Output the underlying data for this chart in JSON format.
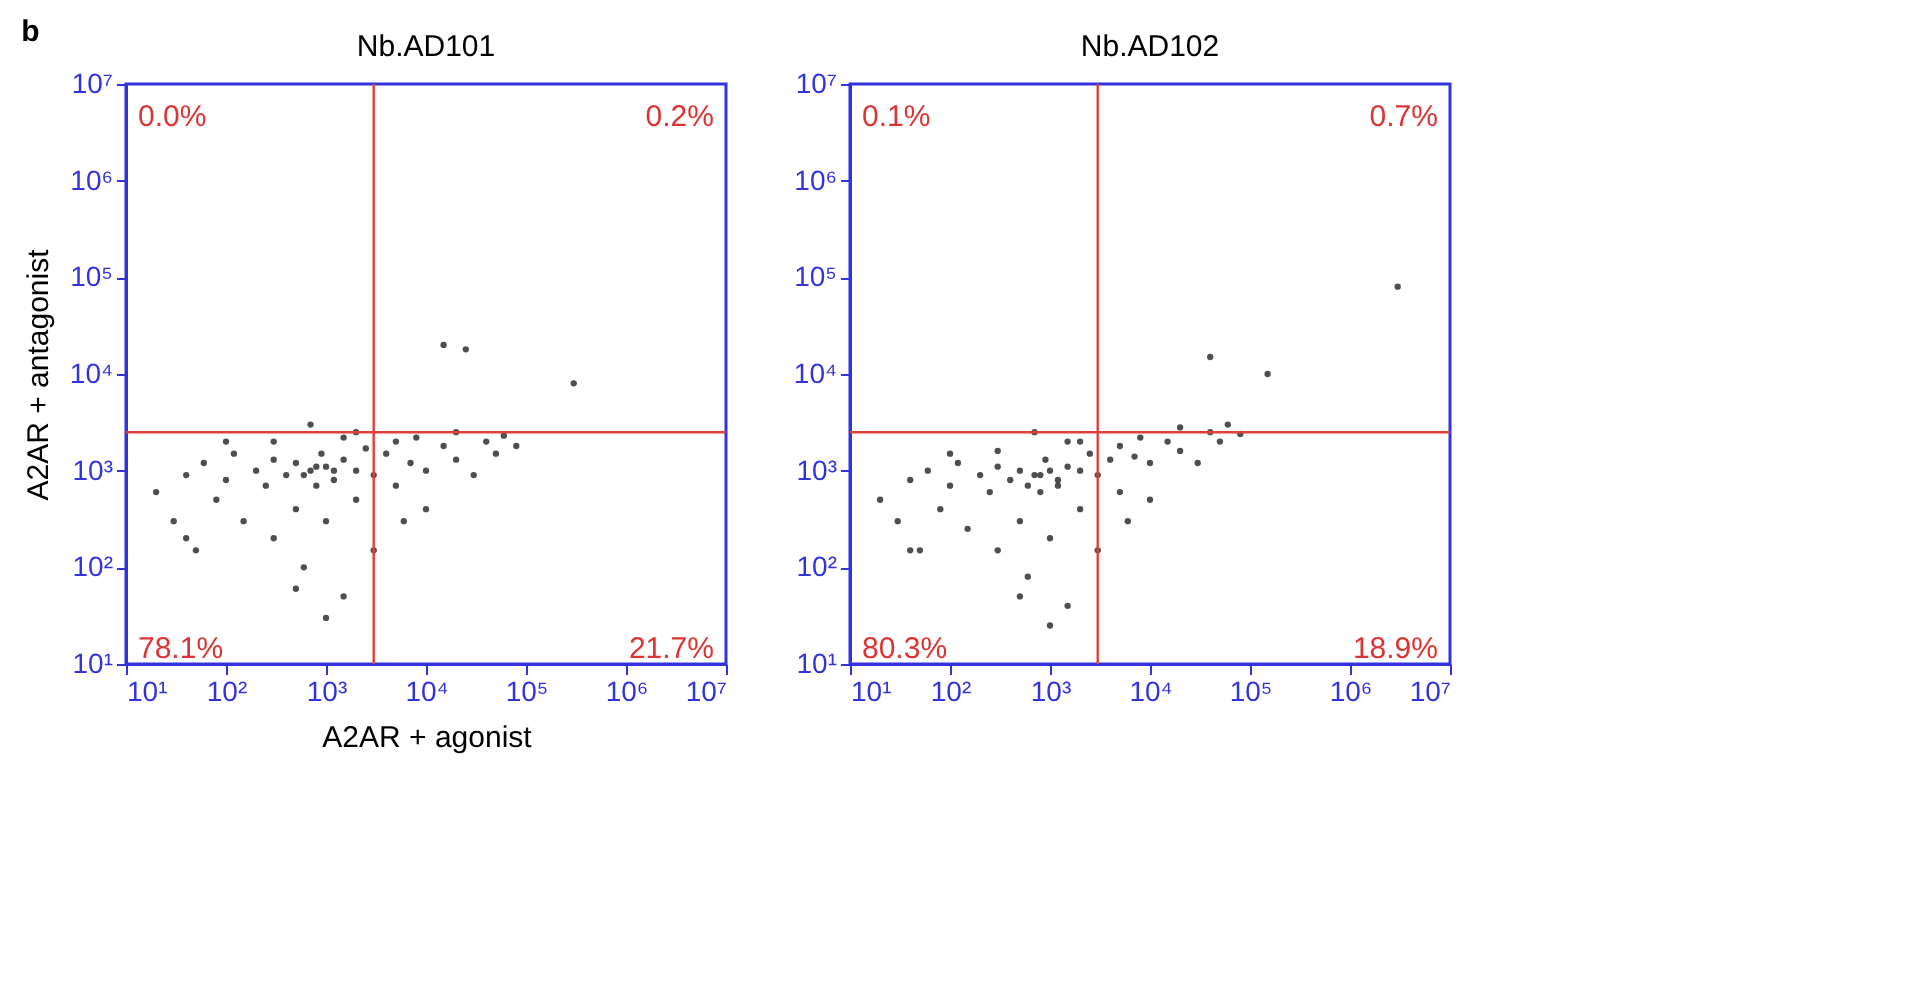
{
  "chart_data": [
    {
      "type": "scatter",
      "title": "Nb.AD101",
      "xlabel": "A2AR + agonist",
      "ylabel": "A2AR + antagonist",
      "log": "xy",
      "grid": false,
      "xlim": [
        10,
        10000000
      ],
      "ylim": [
        10,
        10000000
      ],
      "xticks": [
        {
          "value": 10,
          "label": "10¹"
        },
        {
          "value": 100,
          "label": "10²"
        },
        {
          "value": 1000,
          "label": "10³"
        },
        {
          "value": 10000,
          "label": "10⁴"
        },
        {
          "value": 100000,
          "label": "10⁵"
        },
        {
          "value": 1000000,
          "label": "10⁶"
        },
        {
          "value": 10000000,
          "label": "10⁷"
        }
      ],
      "yticks": [
        {
          "value": 10,
          "label": "10¹"
        },
        {
          "value": 100,
          "label": "10²"
        },
        {
          "value": 1000,
          "label": "10³"
        },
        {
          "value": 10000,
          "label": "10⁴"
        },
        {
          "value": 100000,
          "label": "10⁵"
        },
        {
          "value": 1000000,
          "label": "10⁶"
        },
        {
          "value": 10000000,
          "label": "10⁷"
        }
      ],
      "x": [
        20,
        30,
        40,
        50,
        60,
        80,
        100,
        120,
        150,
        200,
        250,
        300,
        300,
        400,
        500,
        500,
        600,
        700,
        800,
        900,
        1000,
        1000,
        1200,
        1500,
        1500,
        2000,
        2000,
        2500,
        3000,
        3000,
        4000,
        5000,
        5000,
        7000,
        8000,
        10000,
        10000,
        15000,
        20000,
        20000,
        30000,
        40000,
        50000,
        60000,
        80000,
        15000,
        25000,
        300000,
        1000,
        500,
        2000,
        300,
        100,
        40,
        700,
        1500,
        6000,
        600,
        800,
        1200
      ],
      "series": [
        {
          "color": "#222222",
          "values": [
            600,
            300,
            900,
            150,
            1200,
            500,
            800,
            1500,
            300,
            1000,
            700,
            1300,
            200,
            900,
            1200,
            400,
            100,
            1000,
            700,
            1500,
            1100,
            300,
            800,
            1300,
            50,
            1000,
            500,
            1700,
            900,
            150,
            1500,
            2000,
            700,
            1200,
            2200,
            1000,
            400,
            1800,
            1300,
            2500,
            900,
            2000,
            1500,
            2300,
            1800,
            20000,
            18000,
            8000,
            30,
            60,
            2500,
            2000,
            2000,
            200,
            3000,
            2200,
            300,
            900,
            1100,
            1000
          ]
        }
      ],
      "ref_lines": [
        {
          "axis": "x",
          "value": 3000,
          "color": "#e0403a"
        },
        {
          "axis": "y",
          "value": 2500,
          "color": "#e0403a"
        }
      ],
      "annotations": [
        "b",
        "0.0%",
        "0.2%",
        "78.1%",
        "21.7%"
      ]
    },
    {
      "type": "scatter",
      "title": "Nb.AD102",
      "log": "xy",
      "grid": false,
      "xlim": [
        10,
        10000000
      ],
      "ylim": [
        10,
        10000000
      ],
      "xticks": [
        {
          "value": 10,
          "label": "10¹"
        },
        {
          "value": 100,
          "label": "10²"
        },
        {
          "value": 1000,
          "label": "10³"
        },
        {
          "value": 10000,
          "label": "10⁴"
        },
        {
          "value": 100000,
          "label": "10⁵"
        },
        {
          "value": 1000000,
          "label": "10⁶"
        },
        {
          "value": 10000000,
          "label": "10⁷"
        }
      ],
      "yticks": [
        {
          "value": 10,
          "label": "10¹"
        },
        {
          "value": 100,
          "label": "10²"
        },
        {
          "value": 1000,
          "label": "10³"
        },
        {
          "value": 10000,
          "label": "10⁴"
        },
        {
          "value": 100000,
          "label": "10⁵"
        },
        {
          "value": 1000000,
          "label": "10⁶"
        },
        {
          "value": 10000000,
          "label": "10⁷"
        }
      ],
      "x": [
        20,
        30,
        40,
        50,
        60,
        80,
        100,
        120,
        150,
        200,
        250,
        300,
        300,
        400,
        500,
        500,
        600,
        700,
        800,
        900,
        1000,
        1000,
        1200,
        1500,
        1500,
        2000,
        2000,
        2500,
        3000,
        3000,
        4000,
        5000,
        5000,
        7000,
        8000,
        10000,
        10000,
        15000,
        20000,
        20000,
        30000,
        40000,
        50000,
        60000,
        80000,
        40000,
        150000,
        3000000,
        1000,
        500,
        2000,
        300,
        100,
        40,
        700,
        1500,
        6000,
        600,
        800,
        1200
      ],
      "series": [
        {
          "color": "#222222",
          "values": [
            500,
            300,
            800,
            150,
            1000,
            400,
            700,
            1200,
            250,
            900,
            600,
            1100,
            150,
            800,
            1000,
            300,
            80,
            900,
            600,
            1300,
            1000,
            200,
            700,
            1100,
            40,
            1000,
            400,
            1500,
            900,
            150,
            1300,
            1800,
            600,
            1400,
            2200,
            1200,
            500,
            2000,
            1600,
            2800,
            1200,
            2500,
            2000,
            3000,
            2400,
            15000,
            10000,
            80000,
            25,
            50,
            2000,
            1600,
            1500,
            150,
            2500,
            2000,
            300,
            700,
            900,
            800
          ]
        }
      ],
      "ref_lines": [
        {
          "axis": "x",
          "value": 3000,
          "color": "#e0403a"
        },
        {
          "axis": "y",
          "value": 2500,
          "color": "#e0403a"
        }
      ],
      "annotations": [
        "0.1%",
        "0.7%",
        "80.3%",
        "18.9%"
      ]
    }
  ]
}
